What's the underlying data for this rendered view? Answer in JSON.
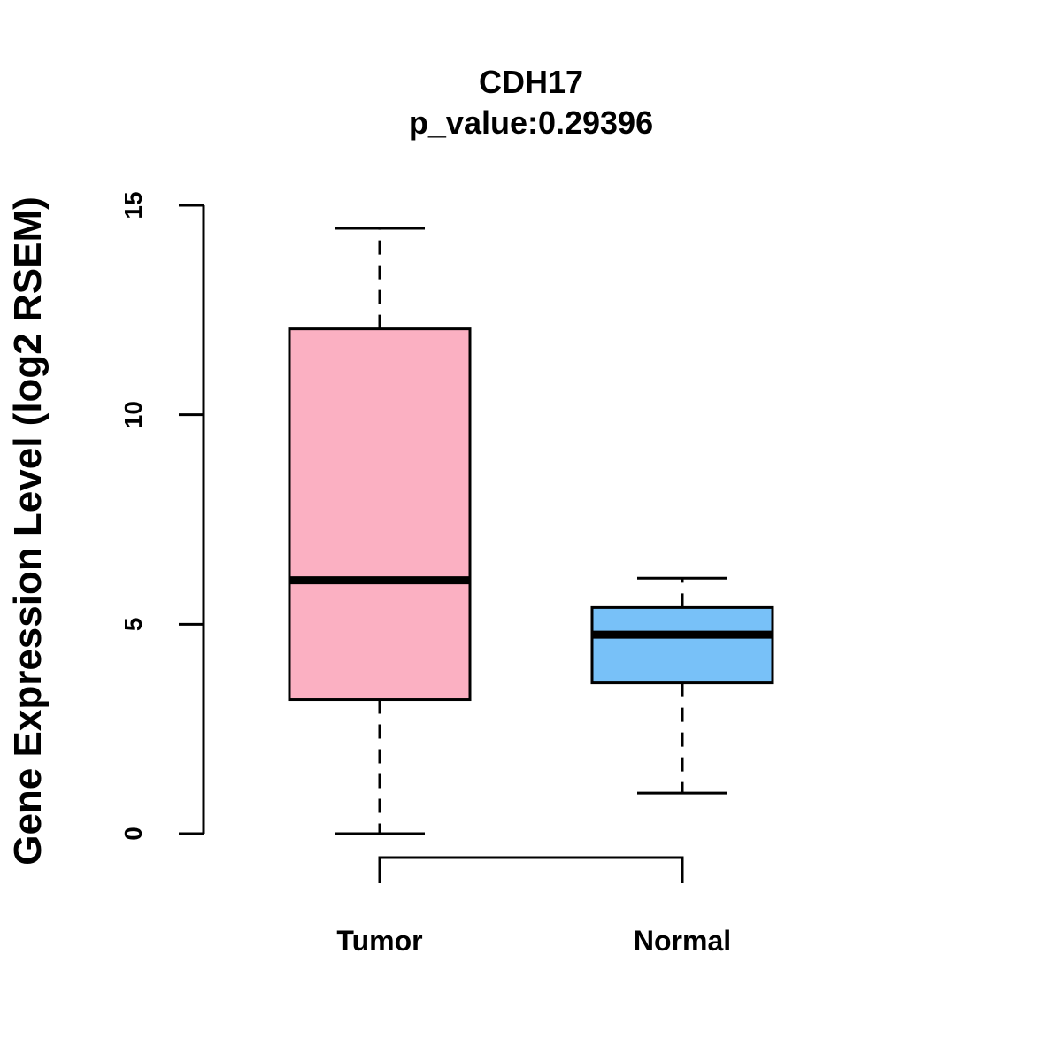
{
  "chart_data": {
    "type": "boxplot",
    "title": "CDH17",
    "subtitle": "p_value:0.29396",
    "ylabel": "Gene Expression Level (log2 RSEM)",
    "xlabel": "",
    "ylim": [
      0,
      15
    ],
    "yticks": [
      0,
      5,
      10,
      15
    ],
    "categories": [
      "Tumor",
      "Normal"
    ],
    "boxes": [
      {
        "name": "Tumor",
        "min": 0.0,
        "q1": 3.2,
        "median": 6.05,
        "q3": 12.05,
        "max": 14.45,
        "color": "#fbb0c2"
      },
      {
        "name": "Normal",
        "min": 0.97,
        "q1": 3.6,
        "median": 4.75,
        "q3": 5.4,
        "max": 6.1,
        "color": "#78c1f8"
      }
    ],
    "comparison_bracket": [
      "Tumor",
      "Normal"
    ],
    "grid": false
  }
}
